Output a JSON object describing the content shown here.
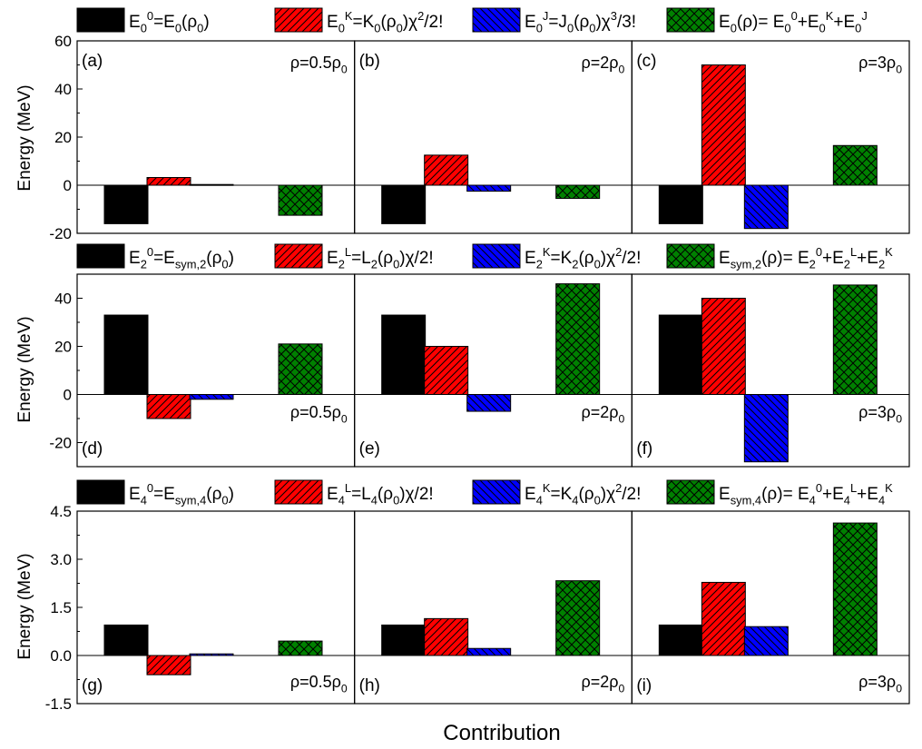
{
  "figure": {
    "xlabel": "Contribution",
    "ylabel": "Energy (MeV)"
  },
  "legends": [
    [
      {
        "base": "E",
        "sub": "0",
        "sup": "0",
        "rest": "=E",
        "rest2": "0",
        "tail": "(ρ",
        "tailsub": "0",
        "tail2": ")",
        "text": "E_0^0=E_0(ρ_0)"
      },
      {
        "text": "E_0^K=K_0(ρ_0)χ^2/2!"
      },
      {
        "text": "E_0^J=J_0(ρ_0)χ^3/3!"
      },
      {
        "text": "E_0(ρ)= E_0^0+E_0^K+E_0^J"
      }
    ],
    [
      {
        "text": "E_2^0=E_sym,2(ρ_0)"
      },
      {
        "text": "E_2^L=L_2(ρ_0)χ/2!"
      },
      {
        "text": "E_2^K=K_2(ρ_0)χ^2/2!"
      },
      {
        "text": "E_sym,2(ρ)= E_2^0+E_2^L+E_2^K"
      }
    ],
    [
      {
        "text": "E_4^0=E_sym,4(ρ_0)"
      },
      {
        "text": "E_4^L=L_4(ρ_0)χ/2!"
      },
      {
        "text": "E_4^K=K_4(ρ_0)χ^2/2!"
      },
      {
        "text": "E_sym,4(ρ)= E_4^0+E_4^L+E_4^K"
      }
    ]
  ],
  "series_styles": [
    {
      "color": "#000000",
      "pattern": "solid"
    },
    {
      "color": "#ff0000",
      "pattern": "diag-right"
    },
    {
      "color": "#0000ff",
      "pattern": "diag-left"
    },
    {
      "color": "#008000",
      "pattern": "crosshatch"
    }
  ],
  "chart_data": [
    {
      "type": "bar",
      "panel": "(a)",
      "density": "ρ=0.5ρ_0",
      "series_values": [
        -16,
        3.2,
        0.3,
        -12.5
      ],
      "ylim": [
        -20,
        60
      ],
      "yticks": [
        "-20",
        "0",
        "20",
        "40",
        "60"
      ],
      "row": 0,
      "col": 0
    },
    {
      "type": "bar",
      "panel": "(b)",
      "density": "ρ=2ρ_0",
      "series_values": [
        -16,
        12.5,
        -2.5,
        -5.5
      ],
      "ylim": [
        -20,
        60
      ],
      "row": 0,
      "col": 1
    },
    {
      "type": "bar",
      "panel": "(c)",
      "density": "ρ=3ρ_0",
      "series_values": [
        -16,
        50,
        -18,
        16.5
      ],
      "ylim": [
        -20,
        60
      ],
      "row": 0,
      "col": 2
    },
    {
      "type": "bar",
      "panel": "(d)",
      "density": "ρ=0.5ρ_0",
      "series_values": [
        33,
        -10,
        -2,
        21
      ],
      "ylim": [
        -30,
        50
      ],
      "yticks": [
        "-20",
        "0",
        "20",
        "40"
      ],
      "row": 1,
      "col": 0
    },
    {
      "type": "bar",
      "panel": "(e)",
      "density": "ρ=2ρ_0",
      "series_values": [
        33,
        20,
        -7,
        46
      ],
      "ylim": [
        -30,
        50
      ],
      "row": 1,
      "col": 1
    },
    {
      "type": "bar",
      "panel": "(f)",
      "density": "ρ=3ρ_0",
      "series_values": [
        33,
        40,
        -28,
        45.5
      ],
      "ylim": [
        -30,
        50
      ],
      "row": 1,
      "col": 2
    },
    {
      "type": "bar",
      "panel": "(g)",
      "density": "ρ=0.5ρ_0",
      "series_values": [
        0.95,
        -0.6,
        0.05,
        0.45
      ],
      "ylim": [
        -1.5,
        4.5
      ],
      "yticks": [
        "-1.5",
        "0.0",
        "1.5",
        "3.0",
        "4.5"
      ],
      "row": 2,
      "col": 0
    },
    {
      "type": "bar",
      "panel": "(h)",
      "density": "ρ=2ρ_0",
      "series_values": [
        0.95,
        1.15,
        0.22,
        2.33
      ],
      "ylim": [
        -1.5,
        4.5
      ],
      "row": 2,
      "col": 1
    },
    {
      "type": "bar",
      "panel": "(i)",
      "density": "ρ=3ρ_0",
      "series_values": [
        0.95,
        2.28,
        0.9,
        4.13
      ],
      "ylim": [
        -1.5,
        4.5
      ],
      "row": 2,
      "col": 2
    }
  ]
}
